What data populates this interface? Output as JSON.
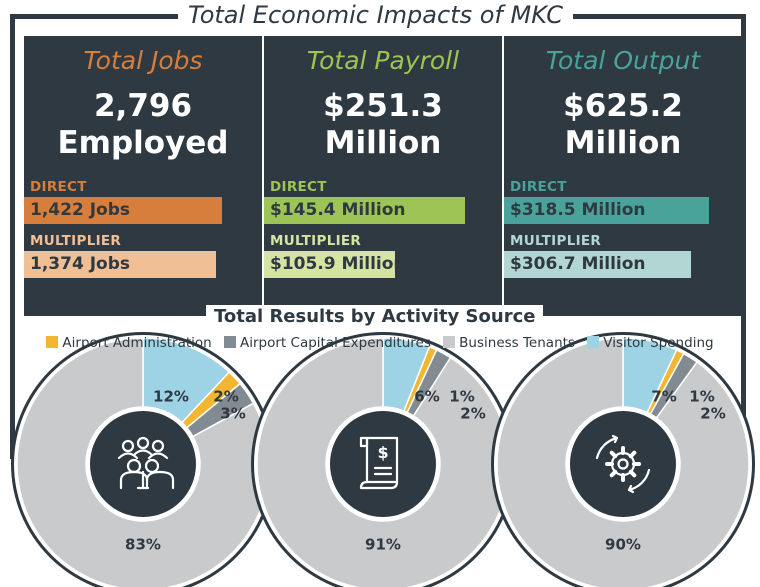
{
  "title": "Total Economic Impacts of MKC",
  "panels": [
    {
      "title": "Total Jobs",
      "value_line1": "2,796",
      "value_line2": "Employed",
      "direct_label": "DIRECT",
      "direct_value": "1,422 Jobs",
      "multiplier_label": "MULTIPLIER",
      "multiplier_value": "1,374 Jobs",
      "colors": {
        "title": "#d77e3c",
        "direct": "#d77e3c",
        "multiplier": "#f0bf96"
      },
      "direct_fraction": 0.91,
      "multiplier_fraction": 0.88
    },
    {
      "title": "Total Payroll",
      "value_line1": "$251.3",
      "value_line2": "Million",
      "direct_label": "DIRECT",
      "direct_value": "$145.4 Million",
      "multiplier_label": "MULTIPLIER",
      "multiplier_value": "$105.9 Million",
      "colors": {
        "title": "#9ec455",
        "direct": "#9ec455",
        "multiplier": "#d5e4a3"
      },
      "direct_fraction": 0.92,
      "multiplier_fraction": 0.6
    },
    {
      "title": "Total Output",
      "value_line1": "$625.2",
      "value_line2": "Million",
      "direct_label": "DIRECT",
      "direct_value": "$318.5 Million",
      "multiplier_label": "MULTIPLIER",
      "multiplier_value": "$306.7 Million",
      "colors": {
        "title": "#4aa39b",
        "direct": "#4aa39b",
        "multiplier": "#b2d6d3"
      },
      "direct_fraction": 0.94,
      "multiplier_fraction": 0.86
    }
  ],
  "section_title": "Total Results by Activity Source",
  "chart_data": [
    {
      "type": "pie",
      "title": "Total Jobs",
      "categories": [
        "Airport Administration",
        "Airport Capital Expenditures",
        "Business Tenants",
        "Visitor Spending"
      ],
      "values": [
        2,
        3,
        83,
        12
      ],
      "labels": [
        "2%",
        "3%",
        "83%",
        "12%"
      ],
      "icon": "people-group-icon"
    },
    {
      "type": "pie",
      "title": "Total Payroll",
      "categories": [
        "Airport Administration",
        "Airport Capital Expenditures",
        "Business Tenants",
        "Visitor Spending"
      ],
      "values": [
        1,
        2,
        91,
        6
      ],
      "labels": [
        "1%",
        "2%",
        "91%",
        "6%"
      ],
      "icon": "dollar-document-icon"
    },
    {
      "type": "pie",
      "title": "Total Output",
      "categories": [
        "Airport Administration",
        "Airport Capital Expenditures",
        "Business Tenants",
        "Visitor Spending"
      ],
      "values": [
        1,
        2,
        90,
        7
      ],
      "labels": [
        "1%",
        "2%",
        "90%",
        "7%"
      ],
      "icon": "gear-cycle-icon"
    }
  ],
  "legend": [
    {
      "label": "Airport Administration",
      "color": "#f2b632"
    },
    {
      "label": "Airport Capital Expenditures",
      "color": "#828b91"
    },
    {
      "label": "Business Tenants",
      "color": "#c8cacb"
    },
    {
      "label": "Visitor Spending",
      "color": "#9dd3e4"
    }
  ]
}
